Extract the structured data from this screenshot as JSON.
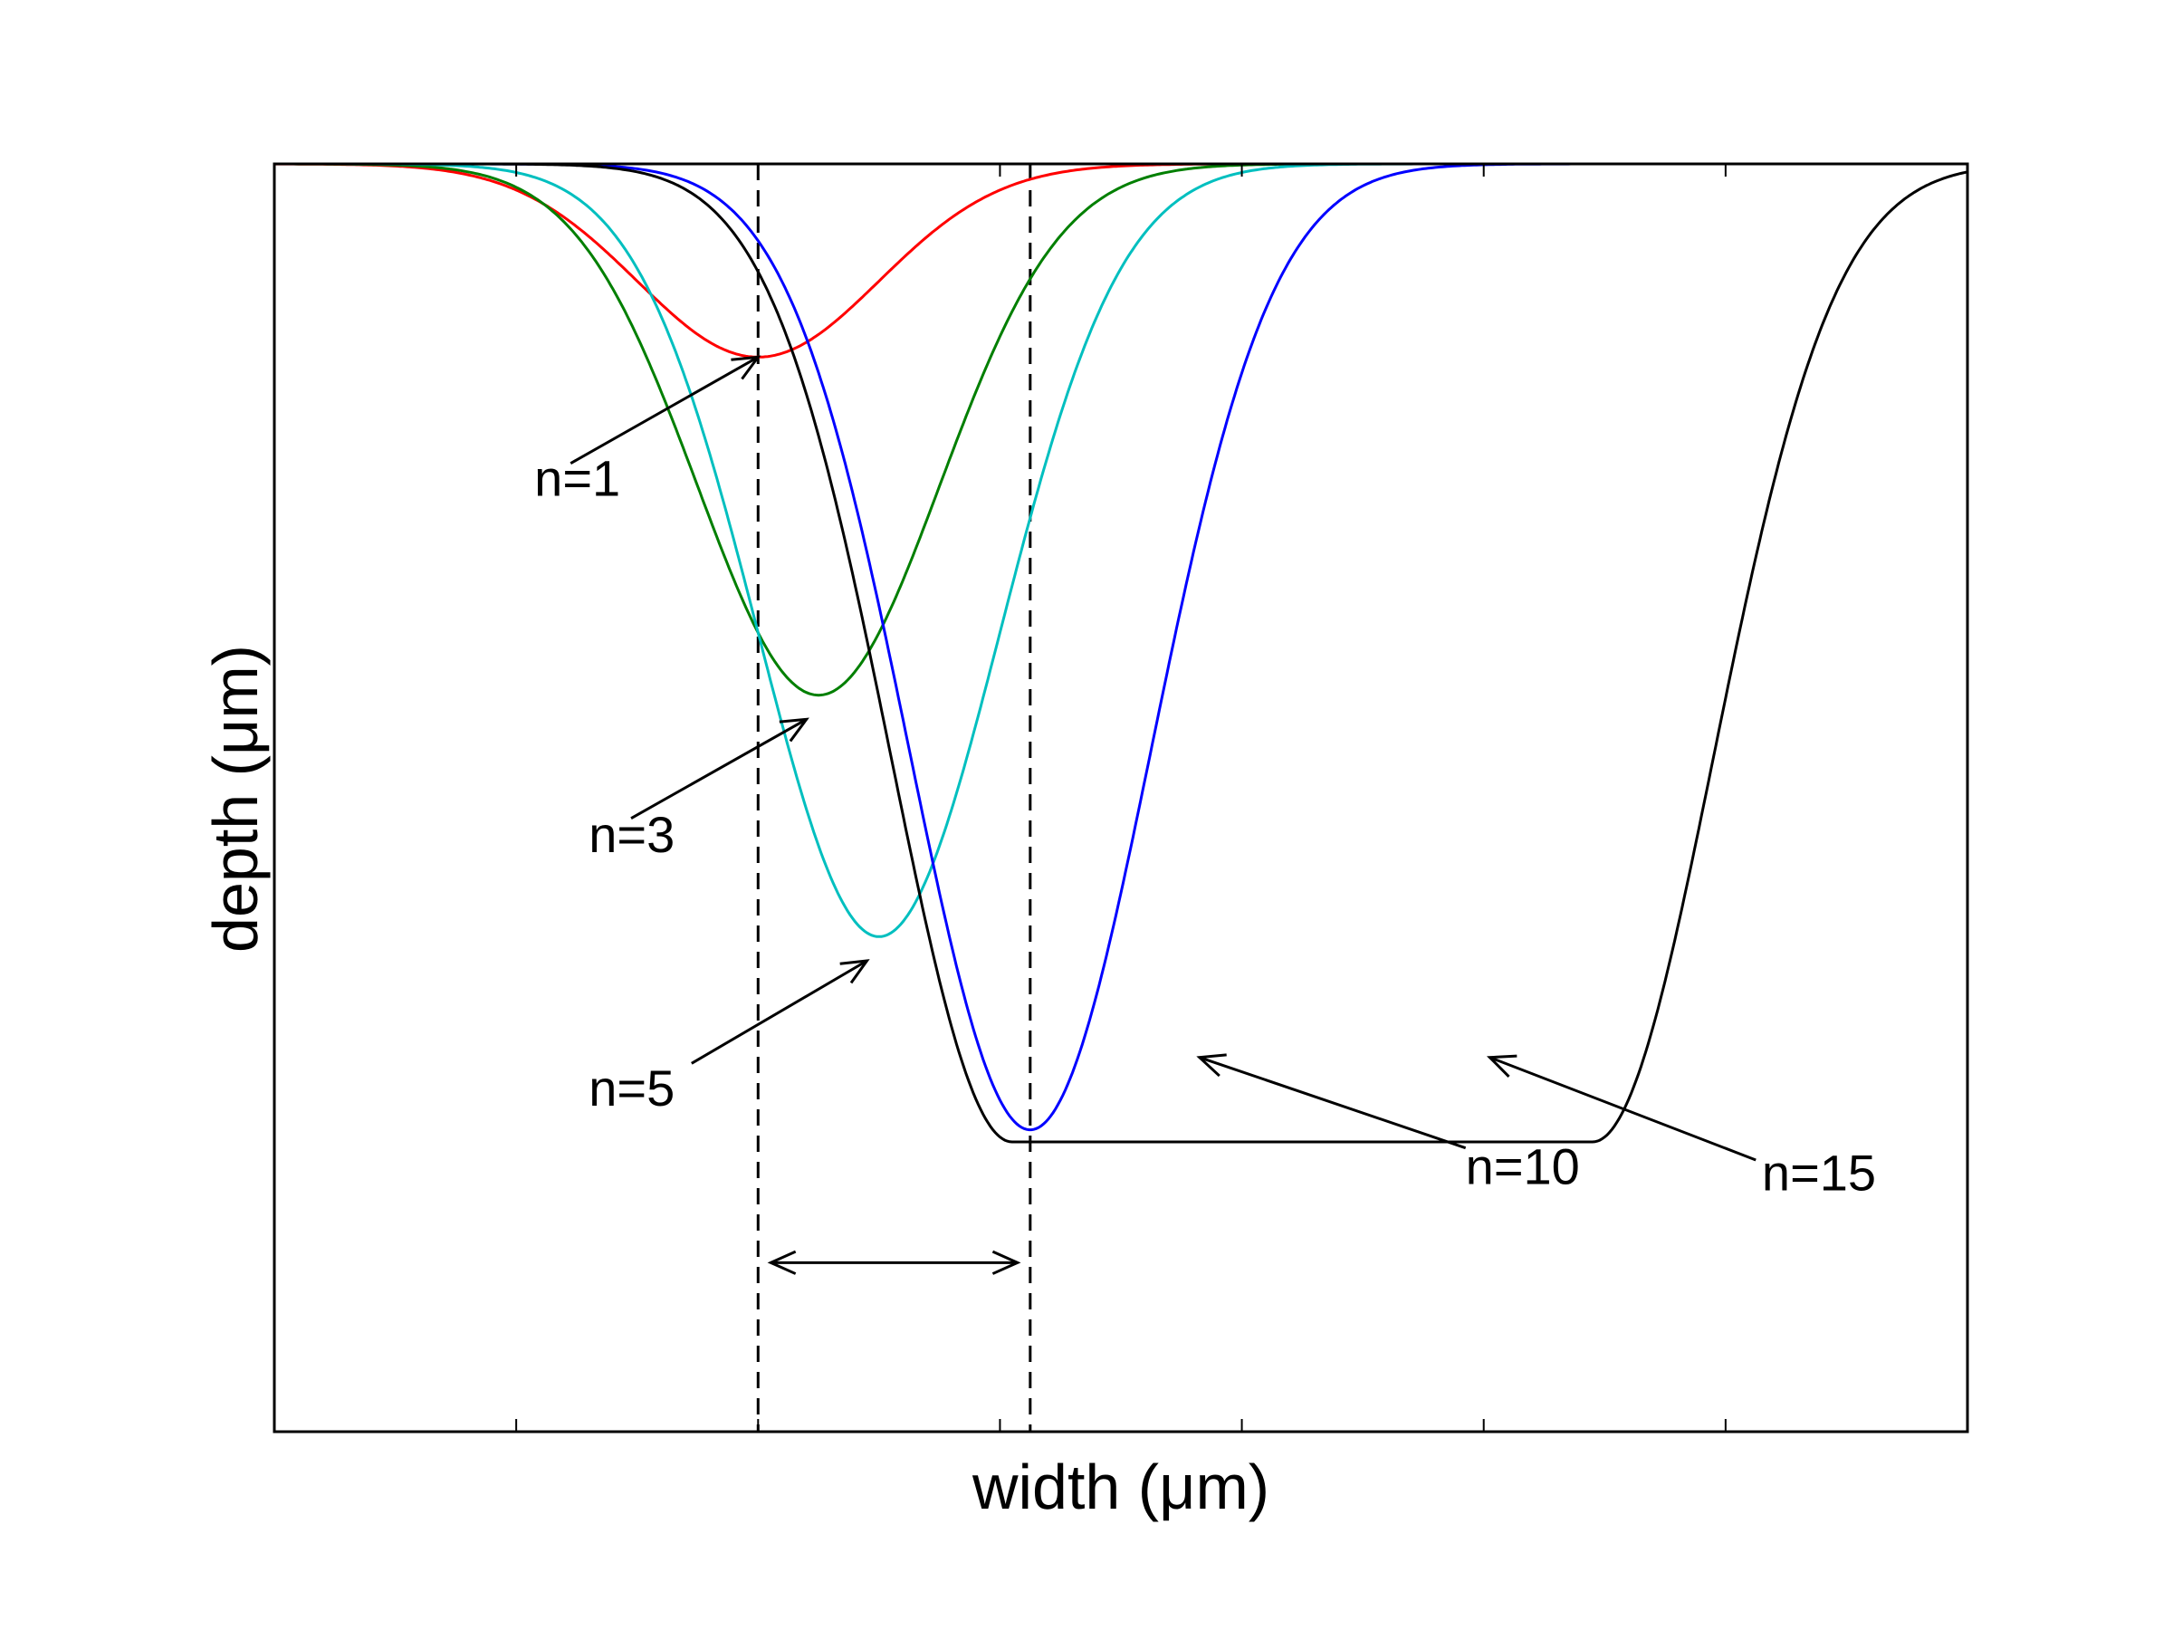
{
  "chart_data": {
    "type": "line",
    "title": "",
    "xlabel": "width (μm)",
    "ylabel": "depth (μm)",
    "xlim": [
      0,
      14
    ],
    "ylim": [
      -10.5,
      0
    ],
    "grid": false,
    "legend": "none",
    "x_ticks": [
      2,
      4,
      6,
      8,
      10,
      12
    ],
    "series": [
      {
        "label": "n=1",
        "color": "#ff0000",
        "center": 4.0,
        "depth": 1.6,
        "sigma": 1.0,
        "flat": 0.0,
        "label_x": 2.15,
        "label_y": -2.75,
        "arrow_tail": [
          2.45,
          -2.48
        ],
        "arrow_head": [
          4.0,
          -1.6
        ]
      },
      {
        "label": "n=3",
        "color": "#007f00",
        "center": 4.5,
        "depth": 4.4,
        "sigma": 1.0,
        "flat": 0.0,
        "label_x": 2.6,
        "label_y": -5.7,
        "arrow_tail": [
          2.95,
          -5.42
        ],
        "arrow_head": [
          4.4,
          -4.6
        ]
      },
      {
        "label": "n=5",
        "color": "#00bfbf",
        "center": 5.0,
        "depth": 6.4,
        "sigma": 1.0,
        "flat": 0.0,
        "label_x": 2.6,
        "label_y": -7.8,
        "arrow_tail": [
          3.45,
          -7.45
        ],
        "arrow_head": [
          4.9,
          -6.6
        ]
      },
      {
        "label": "n=10",
        "color": "#0000ff",
        "center": 6.25,
        "depth": 8.0,
        "sigma": 1.0,
        "flat": 0.0,
        "label_x": 9.85,
        "label_y": -8.45,
        "arrow_tail": [
          9.85,
          -8.15
        ],
        "arrow_head": [
          7.65,
          -7.4
        ]
      },
      {
        "label": "n=15",
        "color": "#000000",
        "center": 8.5,
        "depth": 8.1,
        "sigma": 1.0,
        "flat": 4.8,
        "label_x": 12.3,
        "label_y": -8.5,
        "arrow_tail": [
          12.25,
          -8.25
        ],
        "arrow_head": [
          10.05,
          -7.4
        ]
      }
    ],
    "annotations": {
      "dashed_lines_x": [
        4.0,
        6.25
      ],
      "double_arrow": {
        "x1": 4.0,
        "x2": 6.25,
        "y": -9.1
      }
    }
  }
}
